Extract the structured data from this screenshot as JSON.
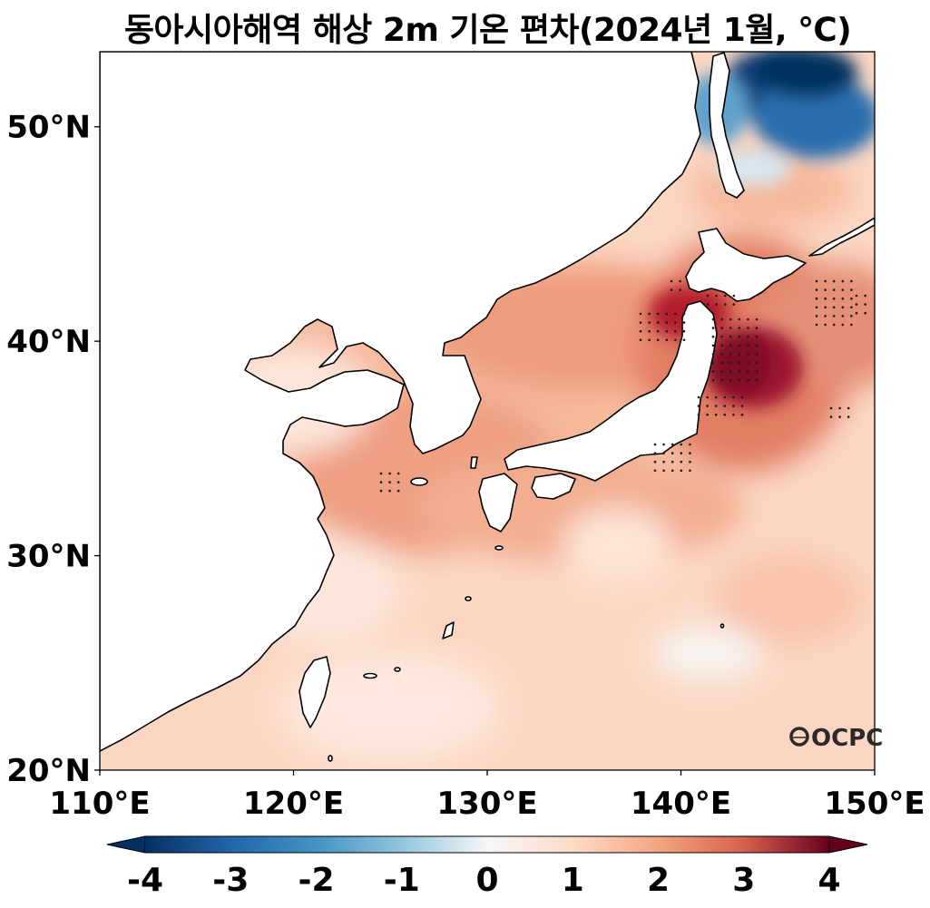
{
  "title": "동아시아해역 해상 2m 기온 편차(2024년 1월, ℃)",
  "logo": "OCPC",
  "map": {
    "lon_range": [
      110,
      150
    ],
    "lat_range": [
      20,
      53.5
    ],
    "x_ticks": [
      110,
      120,
      130,
      140,
      150
    ],
    "y_ticks": [
      20,
      30,
      40,
      50
    ],
    "x_tick_labels": [
      "110°E",
      "120°E",
      "130°E",
      "140°E",
      "150°E"
    ],
    "y_tick_labels": [
      "20°N",
      "30°N",
      "40°N",
      "50°N"
    ],
    "anomaly_regions": [
      {
        "region": "northeast of Hokkaido (Sea of Okhotsk)",
        "anomaly": -4
      },
      {
        "region": "off northeast Honshu",
        "anomaly": 4
      },
      {
        "region": "Tsugaru Strait",
        "anomaly": 3.5
      },
      {
        "region": "East Sea / Sea of Japan",
        "anomaly": 1.8
      },
      {
        "region": "Korea Strait",
        "anomaly": 2.2
      },
      {
        "region": "East China Sea",
        "anomaly": 1.2
      },
      {
        "region": "Bohai Sea",
        "anomaly": 0.3
      }
    ]
  },
  "colorbar": {
    "min": -4,
    "max": 4,
    "ticks": [
      "-4",
      "-3",
      "-2",
      "-1",
      "0",
      "1",
      "2",
      "3",
      "4"
    ],
    "colors": [
      "#053061",
      "#2166ac",
      "#4393c3",
      "#92c5de",
      "#f7f7f7",
      "#fddbc7",
      "#f4a582",
      "#d6604d",
      "#b2182b",
      "#67001f"
    ]
  }
}
